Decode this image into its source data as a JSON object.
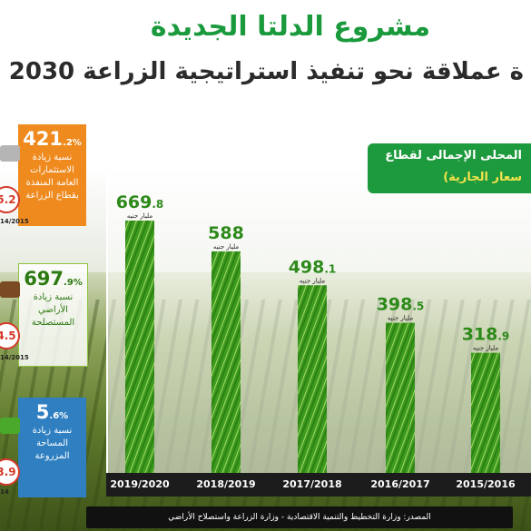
{
  "header": {
    "title": "مشروع الدلتا الجديدة",
    "subtitle": "ة عملاقة نحو تنفيذ استراتيجية الزراعة 2030"
  },
  "panel": {
    "title_line1": "المحلى الإجمالى لقطاع",
    "title_line2": "سعار الجارية)"
  },
  "side_cards": [
    {
      "value": "421",
      "decimal": ".2%",
      "label": "نسبة زيادة الاستثمارات العامة المنفذة بقطاع الزراعة",
      "badge": "5.2",
      "year": "14/2015",
      "color": "#ef8a1e"
    },
    {
      "value": "697",
      "decimal": ".9%",
      "label": "نسبة زيادة الأراضي المستصلحة",
      "badge": "4.5",
      "year": "14/2015",
      "color": "#8fc23f"
    },
    {
      "value": "5",
      "decimal": ".6%",
      "label": "نسبة زيادة المساحة المزروعة",
      "badge": "3.9",
      "year": "14",
      "color": "#2f7fc1"
    }
  ],
  "unit_label": "مليار جنيه",
  "source": "المصدر: وزارة التخطيط والتنمية الاقتصادية - وزارة الزراعة واستصلاح الأراضي",
  "chart_data": {
    "type": "bar",
    "categories": [
      "2019/2020",
      "2018/2019",
      "2017/2018",
      "2016/2017",
      "2015/2016"
    ],
    "values": [
      669.8,
      588,
      498.1,
      398.5,
      318.9
    ],
    "value_labels": [
      "669.8",
      "588",
      "498.1",
      "398.5",
      "318.9"
    ],
    "ylim": [
      0,
      700
    ],
    "bar_color": "#3c9a1f",
    "title": "",
    "xlabel": "",
    "ylabel": ""
  }
}
